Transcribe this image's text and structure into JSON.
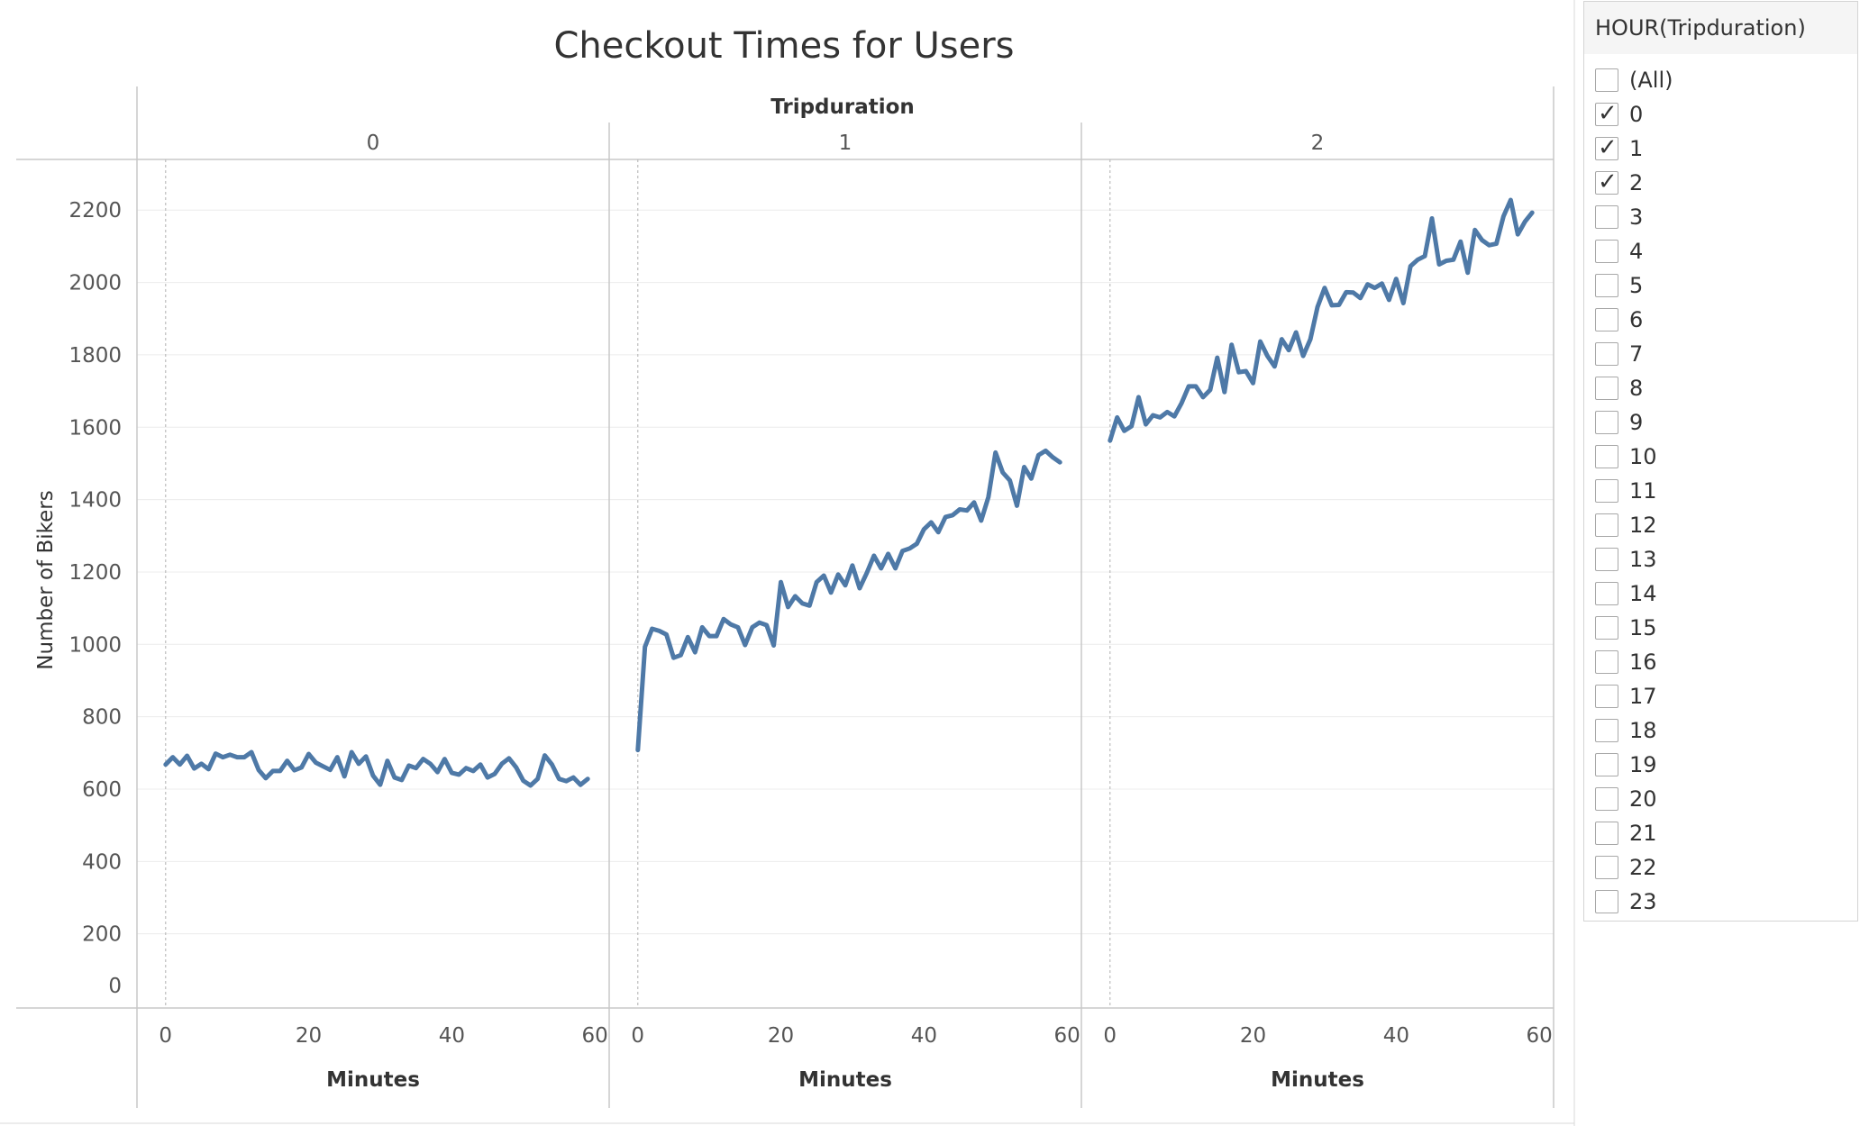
{
  "chart_data": {
    "type": "line",
    "title": "Checkout Times for Users",
    "column_header": "Tripduration",
    "xlabel": "Minutes",
    "ylabel": "Number of Bikers",
    "y_ticks": [
      0,
      200,
      400,
      600,
      800,
      1000,
      1200,
      1400,
      1600,
      1800,
      2000,
      2200
    ],
    "x_ticks": [
      0,
      20,
      40,
      60
    ],
    "ylim": [
      0,
      2340
    ],
    "xlim": [
      -4,
      62
    ],
    "panels": [
      {
        "label": "0",
        "values": [
          668,
          688,
          668,
          692,
          657,
          670,
          655,
          698,
          688,
          695,
          688,
          688,
          702,
          653,
          630,
          650,
          650,
          678,
          652,
          660,
          697,
          673,
          663,
          653,
          688,
          635,
          702,
          670,
          690,
          637,
          612,
          678,
          632,
          625,
          665,
          658,
          683,
          670,
          647,
          683,
          645,
          640,
          658,
          650,
          668,
          632,
          642,
          670,
          685,
          660,
          623,
          610,
          628,
          693,
          668,
          628,
          622,
          632,
          612,
          628
        ],
        "color": "#4e79a7"
      },
      {
        "label": "1",
        "values": [
          708,
          993,
          1043,
          1037,
          1027,
          963,
          970,
          1020,
          978,
          1047,
          1023,
          1023,
          1070,
          1055,
          1047,
          998,
          1047,
          1060,
          1053,
          997,
          1172,
          1103,
          1133,
          1113,
          1107,
          1172,
          1190,
          1143,
          1193,
          1163,
          1218,
          1155,
          1197,
          1245,
          1210,
          1250,
          1210,
          1258,
          1265,
          1278,
          1318,
          1337,
          1310,
          1352,
          1357,
          1373,
          1370,
          1392,
          1342,
          1407,
          1530,
          1475,
          1453,
          1383,
          1490,
          1458,
          1523,
          1535,
          1517,
          1503
        ],
        "color": "#4e79a7"
      },
      {
        "label": "2",
        "values": [
          1563,
          1627,
          1590,
          1603,
          1683,
          1608,
          1633,
          1627,
          1642,
          1630,
          1667,
          1713,
          1713,
          1683,
          1703,
          1792,
          1697,
          1828,
          1752,
          1755,
          1722,
          1837,
          1797,
          1768,
          1843,
          1813,
          1862,
          1797,
          1843,
          1932,
          1985,
          1937,
          1938,
          1973,
          1972,
          1957,
          1995,
          1985,
          1997,
          1952,
          2010,
          1943,
          2045,
          2063,
          2073,
          2177,
          2050,
          2060,
          2063,
          2113,
          2027,
          2145,
          2117,
          2103,
          2107,
          2183,
          2228,
          2133,
          2168,
          2193
        ],
        "color": "#4e79a7"
      }
    ]
  },
  "filter": {
    "title": "HOUR(Tripduration)",
    "items": [
      {
        "label": "(All)",
        "checked": false
      },
      {
        "label": "0",
        "checked": true
      },
      {
        "label": "1",
        "checked": true
      },
      {
        "label": "2",
        "checked": true
      },
      {
        "label": "3",
        "checked": false
      },
      {
        "label": "4",
        "checked": false
      },
      {
        "label": "5",
        "checked": false
      },
      {
        "label": "6",
        "checked": false
      },
      {
        "label": "7",
        "checked": false
      },
      {
        "label": "8",
        "checked": false
      },
      {
        "label": "9",
        "checked": false
      },
      {
        "label": "10",
        "checked": false
      },
      {
        "label": "11",
        "checked": false
      },
      {
        "label": "12",
        "checked": false
      },
      {
        "label": "13",
        "checked": false
      },
      {
        "label": "14",
        "checked": false
      },
      {
        "label": "15",
        "checked": false
      },
      {
        "label": "16",
        "checked": false
      },
      {
        "label": "17",
        "checked": false
      },
      {
        "label": "18",
        "checked": false
      },
      {
        "label": "19",
        "checked": false
      },
      {
        "label": "20",
        "checked": false
      },
      {
        "label": "21",
        "checked": false
      },
      {
        "label": "22",
        "checked": false
      },
      {
        "label": "23",
        "checked": false
      }
    ]
  }
}
